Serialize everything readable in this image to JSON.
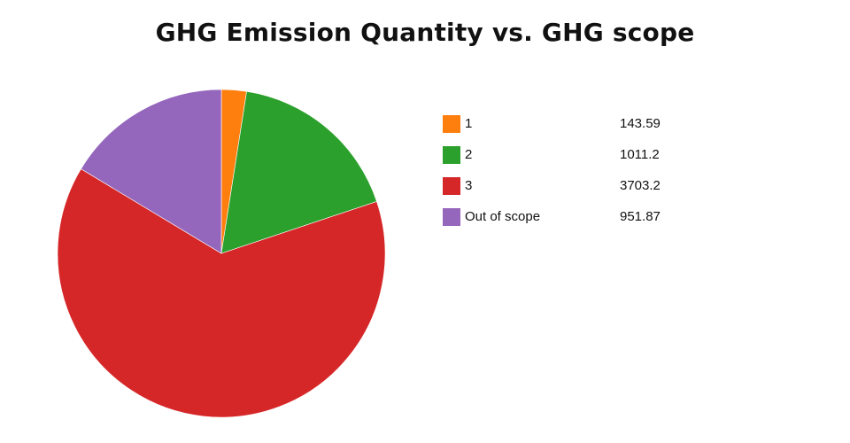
{
  "chart_data": {
    "type": "pie",
    "title": "GHG Emission Quantity vs. GHG scope",
    "start_angle": "top",
    "direction": "clockwise",
    "legend_position": "right",
    "slices": [
      {
        "label": "1",
        "value": 143.59,
        "value_label": "143.59",
        "color": "#ff7f0e"
      },
      {
        "label": "2",
        "value": 1011.2,
        "value_label": "1011.2",
        "color": "#2ca02c"
      },
      {
        "label": "3",
        "value": 3703.2,
        "value_label": "3703.2",
        "color": "#d62728"
      },
      {
        "label": "Out of scope",
        "value": 951.87,
        "value_label": "951.87",
        "color": "#9467bd"
      }
    ]
  }
}
